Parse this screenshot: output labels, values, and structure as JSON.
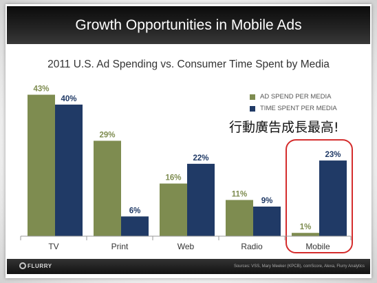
{
  "slide": {
    "title": "Growth Opportunities in Mobile Ads",
    "annotation": "行動廣告成長最高!",
    "footer": {
      "logo_icon": "flurry-logo-icon",
      "logo_text": "FLURRY",
      "sources": "Sources: VSS, Mary Meeker (KPCB), comScore, Alexa, Flurry Analytics"
    }
  },
  "chart_data": {
    "type": "bar",
    "title": "2011 U.S. Ad Spending vs. Consumer Time Spent by Media",
    "unit": "%",
    "categories": [
      "TV",
      "Print",
      "Web",
      "Radio",
      "Mobile"
    ],
    "series": [
      {
        "name": "AD SPEND PER MEDIA",
        "color": "#7e8c50",
        "values": [
          43,
          29,
          16,
          11,
          1
        ],
        "labels": [
          "43%",
          "29%",
          "16%",
          "11%",
          "1%"
        ]
      },
      {
        "name": "TIME SPENT PER MEDIA",
        "color": "#203a66",
        "values": [
          40,
          6,
          22,
          9,
          23
        ],
        "labels": [
          "40%",
          "6%",
          "22%",
          "9%",
          "23%"
        ]
      }
    ],
    "ylim": [
      0,
      45
    ],
    "grid": false,
    "legend_position": "top-right",
    "highlight_category": "Mobile",
    "highlight_color": "#d42b2b"
  }
}
